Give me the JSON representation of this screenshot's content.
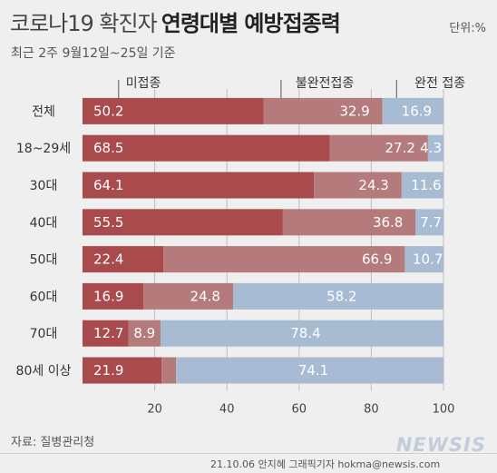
{
  "header": {
    "title_light": "코로나19 확진자",
    "title_bold": "연령대별 예방접종력",
    "unit": "단위:%",
    "subtitle": "최근 2주 9월12일~25일 기준"
  },
  "colors": {
    "unvaccinated": "#a94a4c",
    "partial": "#b57a7b",
    "full": "#a7bcd2",
    "label_text": "#ffffff",
    "grid": "#bdbdbd"
  },
  "chart_data": {
    "type": "bar",
    "orientation": "horizontal",
    "stacked": true,
    "categories": [
      "전체",
      "18~29세",
      "30대",
      "40대",
      "50대",
      "60대",
      "70대",
      "80세 이상"
    ],
    "series": [
      {
        "name": "미접종",
        "values": [
          50.2,
          68.5,
          64.1,
          55.5,
          22.4,
          16.9,
          12.7,
          21.9
        ]
      },
      {
        "name": "불완전접종",
        "values": [
          32.9,
          27.2,
          24.3,
          36.8,
          66.9,
          24.8,
          8.9,
          4.0
        ]
      },
      {
        "name": "완전 접종",
        "values": [
          16.9,
          4.3,
          11.6,
          7.7,
          10.7,
          58.2,
          78.4,
          74.1
        ]
      }
    ],
    "partial_label_shown": [
      true,
      true,
      true,
      true,
      true,
      true,
      true,
      false
    ],
    "xlim": [
      0,
      100
    ],
    "xticks": [
      20,
      40,
      60,
      80,
      100
    ],
    "grid": true,
    "legend_position": "top"
  },
  "footer": {
    "source": "자료: 질병관리청",
    "credit": "21.10.06  안지혜 그래픽기자  hokma@newsis.com",
    "watermark": "NEWSIS"
  }
}
